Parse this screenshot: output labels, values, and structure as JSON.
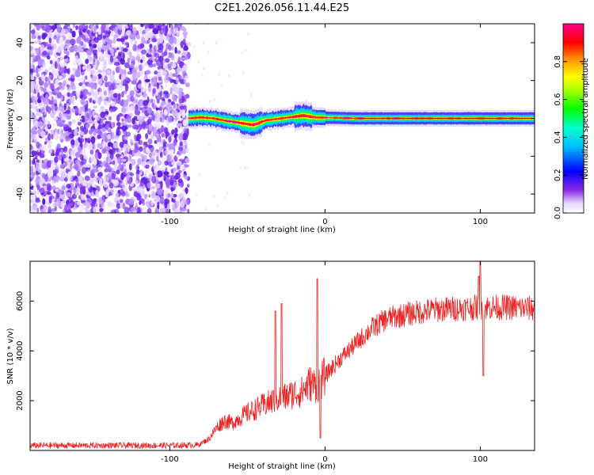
{
  "title": "C2E1.2026.056.11.44.E25",
  "colors": {
    "snr_line": "#ee2222",
    "axis": "#000000",
    "sample_purple": "#7722ee",
    "band_core": "#ff2211",
    "band_edge": "#0044ff"
  },
  "chart_data": [
    {
      "type": "heatmap",
      "xlabel": "Height of straight line (km)",
      "ylabel": "Frequency (Hz)",
      "xlim": [
        -190,
        135
      ],
      "ylim": [
        -50,
        50
      ],
      "xticks": [
        -100,
        0,
        100
      ],
      "xtick_labels": [
        "-100",
        "0",
        "100"
      ],
      "yticks": [
        -40,
        -20,
        0,
        20,
        40
      ],
      "ytick_labels": [
        "-40",
        "-20",
        "0",
        "20",
        "40"
      ],
      "noise_region_x": [
        -190,
        -88
      ],
      "signal_band_center_hz": 0,
      "signal_band_center_track": [
        {
          "x": -88,
          "y": 0.0
        },
        {
          "x": -80,
          "y": 0.5
        },
        {
          "x": -72,
          "y": 0.0
        },
        {
          "x": -62,
          "y": -1.5
        },
        {
          "x": -54,
          "y": -2.5
        },
        {
          "x": -46,
          "y": -3.5
        },
        {
          "x": -38,
          "y": -1.0
        },
        {
          "x": -28,
          "y": 0.0
        },
        {
          "x": -14,
          "y": 1.5
        },
        {
          "x": -6,
          "y": 0.5
        },
        {
          "x": 20,
          "y": 0.0
        },
        {
          "x": 100,
          "y": 0.0
        },
        {
          "x": 135,
          "y": 0.0
        }
      ],
      "colorbar": {
        "label": "Normalized spectral amplitude",
        "range": [
          0,
          1
        ],
        "ticks": [
          0.0,
          0.2,
          0.4,
          0.6,
          0.8
        ],
        "tick_labels": [
          "0.0",
          "0.2",
          "0.4",
          "0.6",
          "0.8"
        ],
        "colormap": "rainbow (white-purple-blue-cyan-green-yellow-red-magenta)"
      }
    },
    {
      "type": "line",
      "xlabel": "Height of straight line (km)",
      "ylabel": "SNR (10 * v/v)",
      "xlim": [
        -190,
        135
      ],
      "ylim": [
        0,
        7600
      ],
      "xticks": [
        -100,
        0,
        100
      ],
      "xtick_labels": [
        "-100",
        "0",
        "100"
      ],
      "yticks": [
        2000,
        4000,
        6000
      ],
      "ytick_labels": [
        "2000",
        "4000",
        "6000"
      ],
      "series": [
        {
          "name": "SNR",
          "trend": [
            {
              "x": -190,
              "y": 200
            },
            {
              "x": -100,
              "y": 200
            },
            {
              "x": -82,
              "y": 220
            },
            {
              "x": -75,
              "y": 450
            },
            {
              "x": -70,
              "y": 900
            },
            {
              "x": -65,
              "y": 1200
            },
            {
              "x": -60,
              "y": 1100
            },
            {
              "x": -55,
              "y": 1300
            },
            {
              "x": -50,
              "y": 1500
            },
            {
              "x": -45,
              "y": 1650
            },
            {
              "x": -40,
              "y": 1800
            },
            {
              "x": -35,
              "y": 1950
            },
            {
              "x": -30,
              "y": 2100
            },
            {
              "x": -25,
              "y": 2150
            },
            {
              "x": -20,
              "y": 2300
            },
            {
              "x": -15,
              "y": 2350
            },
            {
              "x": -10,
              "y": 2700
            },
            {
              "x": -5,
              "y": 2600
            },
            {
              "x": 0,
              "y": 3000
            },
            {
              "x": 10,
              "y": 3700
            },
            {
              "x": 20,
              "y": 4300
            },
            {
              "x": 30,
              "y": 4900
            },
            {
              "x": 40,
              "y": 5300
            },
            {
              "x": 55,
              "y": 5500
            },
            {
              "x": 70,
              "y": 5650
            },
            {
              "x": 85,
              "y": 5700
            },
            {
              "x": 100,
              "y": 5750
            },
            {
              "x": 115,
              "y": 5750
            },
            {
              "x": 135,
              "y": 5700
            }
          ],
          "spikes": [
            {
              "x": -32,
              "y": 5600
            },
            {
              "x": -28,
              "y": 5900
            },
            {
              "x": -5,
              "y": 6900
            },
            {
              "x": -3,
              "y": 500
            },
            {
              "x": 99,
              "y": 7000
            },
            {
              "x": 100,
              "y": 7600
            },
            {
              "x": 102,
              "y": 3000
            }
          ]
        }
      ]
    }
  ]
}
